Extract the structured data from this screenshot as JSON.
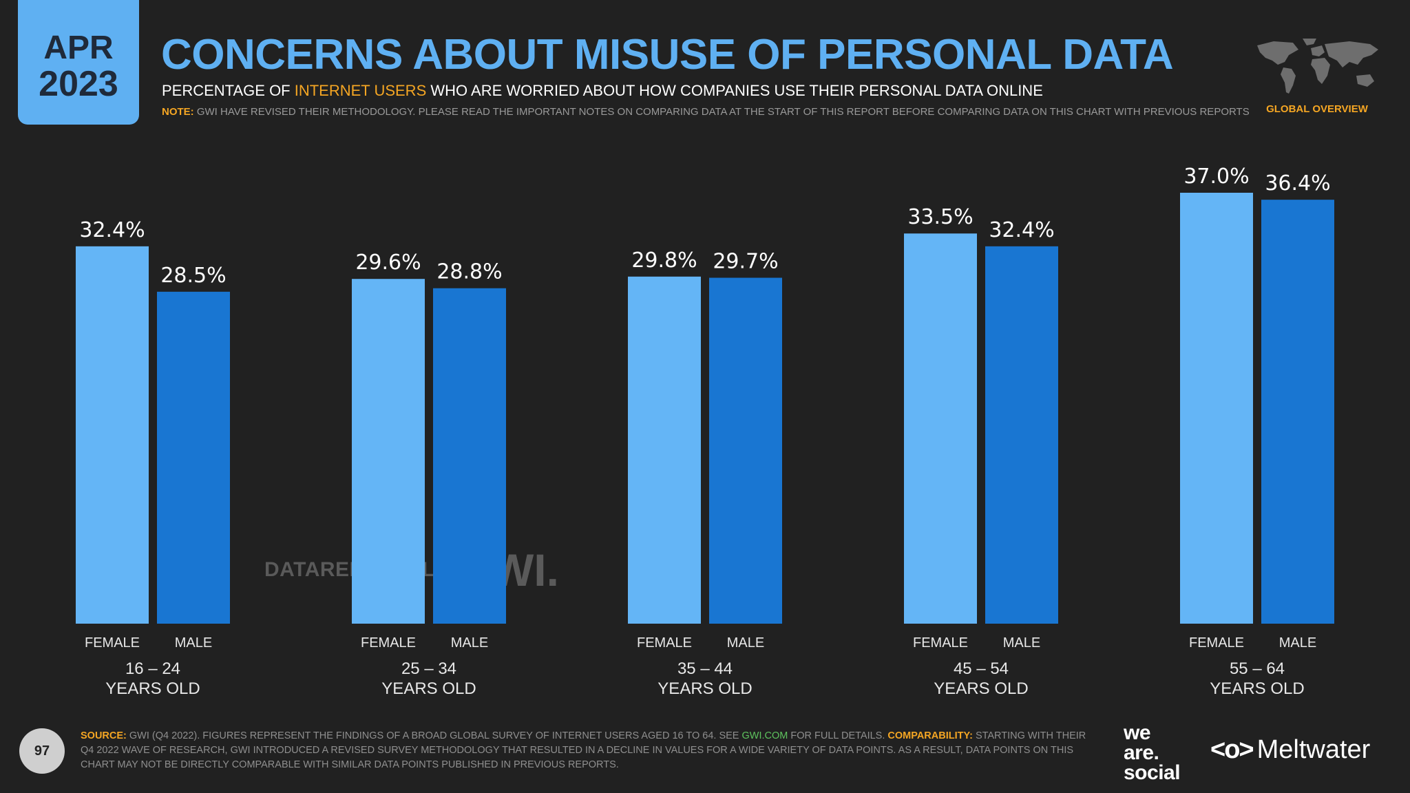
{
  "badge": {
    "month": "APR",
    "year": "2023"
  },
  "header": {
    "title": "CONCERNS ABOUT MISUSE OF PERSONAL DATA",
    "subtitle_pre": "PERCENTAGE OF ",
    "subtitle_highlight": "INTERNET USERS",
    "subtitle_post": " WHO ARE WORRIED ABOUT HOW COMPANIES USE THEIR PERSONAL DATA ONLINE",
    "note_label": "NOTE:",
    "note_text": "GWI HAVE REVISED THEIR METHODOLOGY. PLEASE READ THE IMPORTANT NOTES ON COMPARING DATA AT THE START OF THIS REPORT BEFORE COMPARING DATA ON THIS CHART WITH PREVIOUS REPORTS",
    "region_label": "GLOBAL OVERVIEW",
    "map_icon": "world-map-icon"
  },
  "chart_data": {
    "type": "bar",
    "categories": [
      "16 – 24",
      "25 – 34",
      "35 – 44",
      "45 – 54",
      "55 – 64"
    ],
    "category_suffix": "YEARS OLD",
    "series": [
      {
        "name": "FEMALE",
        "values": [
          32.4,
          29.6,
          29.8,
          33.5,
          37.0
        ],
        "labels": [
          "32.4%",
          "29.6%",
          "29.8%",
          "33.5%",
          "37.0%"
        ],
        "color": "#64b5f6"
      },
      {
        "name": "MALE",
        "values": [
          28.5,
          28.8,
          29.7,
          32.4,
          36.4
        ],
        "labels": [
          "28.5%",
          "28.8%",
          "29.7%",
          "32.4%",
          "36.4%"
        ],
        "color": "#1976d2"
      }
    ],
    "unit": "%",
    "ylim": [
      0,
      37.0
    ],
    "grid": false
  },
  "watermark": {
    "datareportal": "DATAREPORTAL",
    "gwi": "GWI."
  },
  "footer": {
    "page_number": "97",
    "source_label": "SOURCE:",
    "source_text_1": "GWI (Q4 2022). FIGURES REPRESENT THE FINDINGS OF A BROAD GLOBAL SURVEY OF INTERNET USERS AGED 16 TO 64. SEE ",
    "source_link": "GWI.COM",
    "source_text_2": " FOR FULL DETAILS. ",
    "comparability_label": "COMPARABILITY:",
    "comparability_text": "STARTING WITH THEIR Q4 2022 WAVE OF RESEARCH, GWI INTRODUCED A REVISED SURVEY METHODOLOGY THAT RESULTED IN A DECLINE IN VALUES FOR A WIDE VARIETY OF DATA POINTS. AS A RESULT, DATA POINTS ON THIS CHART MAY NOT BE DIRECTLY COMPARABLE WITH SIMILAR DATA POINTS PUBLISHED IN PREVIOUS REPORTS.",
    "logo_was_1": "we",
    "logo_was_2": "are.",
    "logo_was_3": "social",
    "logo_meltwater_icon": "<o>",
    "logo_meltwater": "Meltwater"
  }
}
